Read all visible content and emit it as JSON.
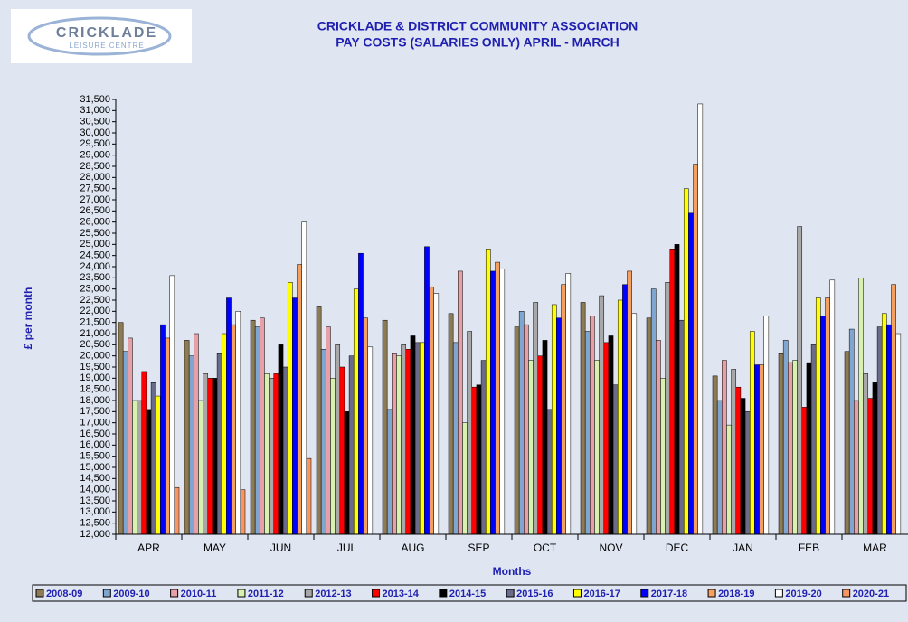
{
  "logo": {
    "name": "CRICKLADE",
    "subtitle": "LEISURE CENTRE"
  },
  "chart_data": {
    "type": "bar",
    "title": "CRICKLADE & DISTRICT COMMUNITY ASSOCIATION",
    "subtitle": "PAY COSTS (SALARIES ONLY)  APRIL - MARCH",
    "y_label": "£ per month",
    "x_label": "Months",
    "categories": [
      "APR",
      "MAY",
      "JUN",
      "JUL",
      "AUG",
      "SEP",
      "OCT",
      "NOV",
      "DEC",
      "JAN",
      "FEB",
      "MAR"
    ],
    "series": [
      {
        "name": "2008-09",
        "color": "#8c7b55",
        "values": [
          21500,
          20700,
          21600,
          22200,
          21600,
          21900,
          21300,
          22400,
          21700,
          19100,
          20100,
          20200
        ]
      },
      {
        "name": "2009-10",
        "color": "#7fa6d1",
        "values": [
          20200,
          20000,
          21300,
          20300,
          17600,
          20600,
          22000,
          21100,
          23000,
          18000,
          20700,
          21200
        ]
      },
      {
        "name": "2010-11",
        "color": "#e8a0a8",
        "values": [
          20800,
          21000,
          21700,
          21300,
          20100,
          23800,
          21400,
          21800,
          20700,
          19800,
          19700,
          18000
        ]
      },
      {
        "name": "2011-12",
        "color": "#d8f0b0",
        "values": [
          18000,
          18000,
          19200,
          19000,
          20000,
          17000,
          19800,
          19800,
          19000,
          16900,
          19800,
          23500
        ]
      },
      {
        "name": "2012-13",
        "color": "#a8a8a8",
        "values": [
          18000,
          19200,
          19000,
          20500,
          20500,
          21100,
          22400,
          22700,
          23300,
          19400,
          25800,
          19200
        ]
      },
      {
        "name": "2013-14",
        "color": "#ff0000",
        "values": [
          19300,
          19000,
          19200,
          19500,
          20300,
          18600,
          20000,
          20600,
          24800,
          18600,
          17700,
          18100
        ]
      },
      {
        "name": "2014-15",
        "color": "#000000",
        "values": [
          17600,
          19000,
          20500,
          17500,
          20900,
          18700,
          20700,
          20900,
          25000,
          18100,
          19700,
          18800
        ]
      },
      {
        "name": "2015-16",
        "color": "#6a6a8a",
        "values": [
          18800,
          20100,
          19500,
          20000,
          20600,
          19800,
          17600,
          18700,
          21600,
          17500,
          20500,
          21300
        ]
      },
      {
        "name": "2016-17",
        "color": "#ffff00",
        "values": [
          18200,
          21000,
          23300,
          23000,
          20600,
          24800,
          22300,
          22500,
          27500,
          21100,
          22600,
          21900
        ]
      },
      {
        "name": "2017-18",
        "color": "#0000ff",
        "values": [
          21400,
          22600,
          22600,
          24600,
          24900,
          23800,
          21700,
          23200,
          26400,
          19600,
          21800,
          21400
        ]
      },
      {
        "name": "2018-19",
        "color": "#f4a060",
        "values": [
          20800,
          21400,
          24100,
          21700,
          23100,
          24200,
          23200,
          23800,
          28600,
          19600,
          22600,
          23200
        ]
      },
      {
        "name": "2019-20",
        "color": "#ffffff",
        "values": [
          23600,
          22000,
          26000,
          20400,
          22800,
          23900,
          23700,
          21900,
          31300,
          21800,
          23400,
          21000
        ]
      },
      {
        "name": "2020-21",
        "color": "#f79660",
        "values": [
          14100,
          14000,
          15400,
          null,
          null,
          null,
          null,
          null,
          null,
          null,
          null,
          null
        ]
      }
    ],
    "ylim": [
      12000,
      31500
    ],
    "yticks": [
      {
        "value": 12000,
        "label": "12,000"
      },
      {
        "value": 12500,
        "label": "12,500"
      },
      {
        "value": 13000,
        "label": "13,000"
      },
      {
        "value": 13500,
        "label": "13,500"
      },
      {
        "value": 14000,
        "label": "14,000"
      },
      {
        "value": 14500,
        "label": "14,500"
      },
      {
        "value": 15000,
        "label": "15,000"
      },
      {
        "value": 15500,
        "label": "15,500"
      },
      {
        "value": 16000,
        "label": "16,000"
      },
      {
        "value": 16500,
        "label": "16,500"
      },
      {
        "value": 17000,
        "label": "17,000"
      },
      {
        "value": 17500,
        "label": "17,500"
      },
      {
        "value": 18000,
        "label": "18,000"
      },
      {
        "value": 18500,
        "label": "18,500"
      },
      {
        "value": 19000,
        "label": "19,000"
      },
      {
        "value": 19500,
        "label": "19,500"
      },
      {
        "value": 20000,
        "label": "20,000"
      },
      {
        "value": 20500,
        "label": "20,500"
      },
      {
        "value": 21000,
        "label": "21,000"
      },
      {
        "value": 21500,
        "label": "21,500"
      },
      {
        "value": 22000,
        "label": "22,000"
      },
      {
        "value": 22500,
        "label": "22,500"
      },
      {
        "value": 23000,
        "label": "23,000"
      },
      {
        "value": 23500,
        "label": "23,500"
      },
      {
        "value": 24000,
        "label": "24,000"
      },
      {
        "value": 24500,
        "label": "24,500"
      },
      {
        "value": 25000,
        "label": "25,000"
      },
      {
        "value": 25500,
        "label": "25,500"
      },
      {
        "value": 26000,
        "label": "26,000"
      },
      {
        "value": 26500,
        "label": "26,500"
      },
      {
        "value": 27000,
        "label": "27,000"
      },
      {
        "value": 27500,
        "label": "27,500"
      },
      {
        "value": 28000,
        "label": "28,000"
      },
      {
        "value": 28500,
        "label": "28,500"
      },
      {
        "value": 29000,
        "label": "29,000"
      },
      {
        "value": 29500,
        "label": "29,500"
      },
      {
        "value": 30000,
        "label": "30,000"
      },
      {
        "value": 30500,
        "label": "30,500"
      },
      {
        "value": 31000,
        "label": "31,000"
      },
      {
        "value": 31500,
        "label": "31,500"
      }
    ],
    "grid": false,
    "legend": "bottom"
  }
}
